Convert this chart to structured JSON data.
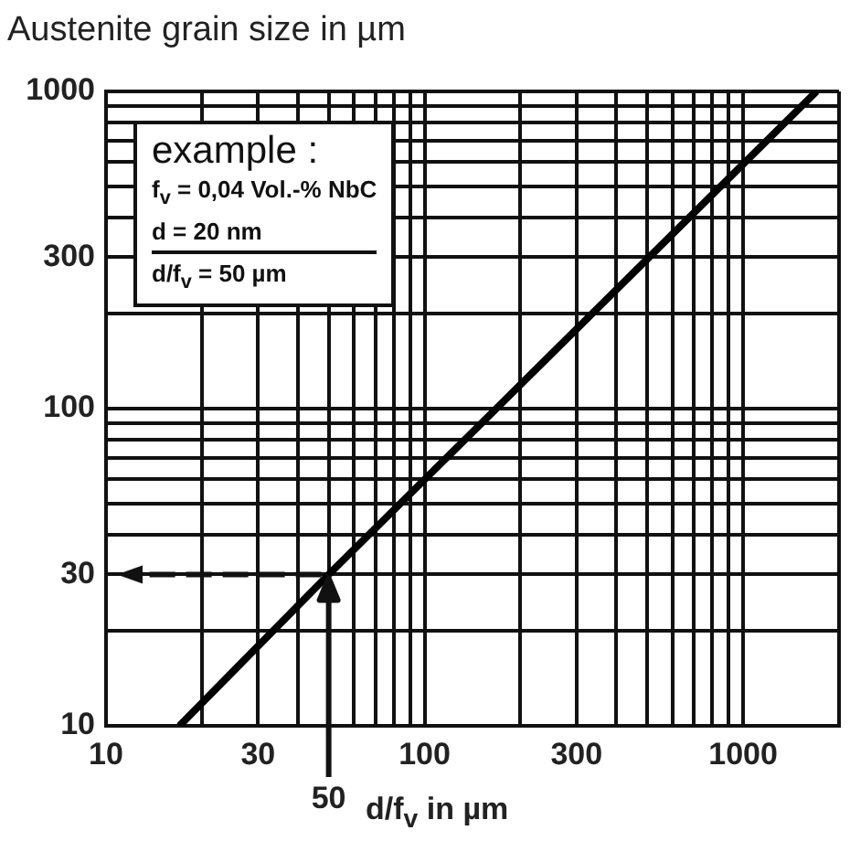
{
  "chart_data": {
    "type": "line",
    "ylabel": "Austenite grain size in µm",
    "xlabel": "d/f$_{v}$ in µm",
    "x": [
      17,
      50,
      1700
    ],
    "series": [
      {
        "color": "#000000",
        "values": [
          10,
          30,
          1000
        ]
      }
    ],
    "log": "xy",
    "xlim": [
      10,
      2000
    ],
    "ylim": [
      10,
      1000
    ],
    "xticks": [
      10,
      {
        "value": 20,
        "label": null
      },
      30,
      {
        "value": 40,
        "label": null
      },
      {
        "value": 50,
        "label": null
      },
      {
        "value": 60,
        "label": null
      },
      {
        "value": 70,
        "label": null
      },
      {
        "value": 80,
        "label": null
      },
      {
        "value": 90,
        "label": null
      },
      100,
      {
        "value": 200,
        "label": null
      },
      300,
      {
        "value": 400,
        "label": null
      },
      {
        "value": 500,
        "label": null
      },
      {
        "value": 600,
        "label": null
      },
      {
        "value": 700,
        "label": null
      },
      {
        "value": 800,
        "label": null
      },
      {
        "value": 900,
        "label": null
      },
      1000,
      {
        "value": 2000,
        "label": null
      }
    ],
    "yticks": [
      10,
      {
        "value": 20,
        "label": null
      },
      30,
      {
        "value": 40,
        "label": null
      },
      {
        "value": 50,
        "label": null
      },
      {
        "value": 60,
        "label": null
      },
      {
        "value": 70,
        "label": null
      },
      {
        "value": 80,
        "label": null
      },
      {
        "value": 90,
        "label": null
      },
      100,
      {
        "value": 200,
        "label": null
      },
      300,
      {
        "value": 400,
        "label": null
      },
      {
        "value": 500,
        "label": null
      },
      {
        "value": 600,
        "label": null
      },
      {
        "value": 700,
        "label": null
      },
      {
        "value": 800,
        "label": null
      },
      {
        "value": 900,
        "label": null
      },
      1000
    ],
    "grid": true,
    "legend": false,
    "marker": "none",
    "line_style": "solid",
    "annotations": [
      "example :",
      "f$_{v}$ = 0,04 Vol.-% NbC",
      "d = 20 nm",
      "d/f$_{v}$ = 50 µm",
      {
        "text": "50",
        "x": 50
      }
    ]
  }
}
